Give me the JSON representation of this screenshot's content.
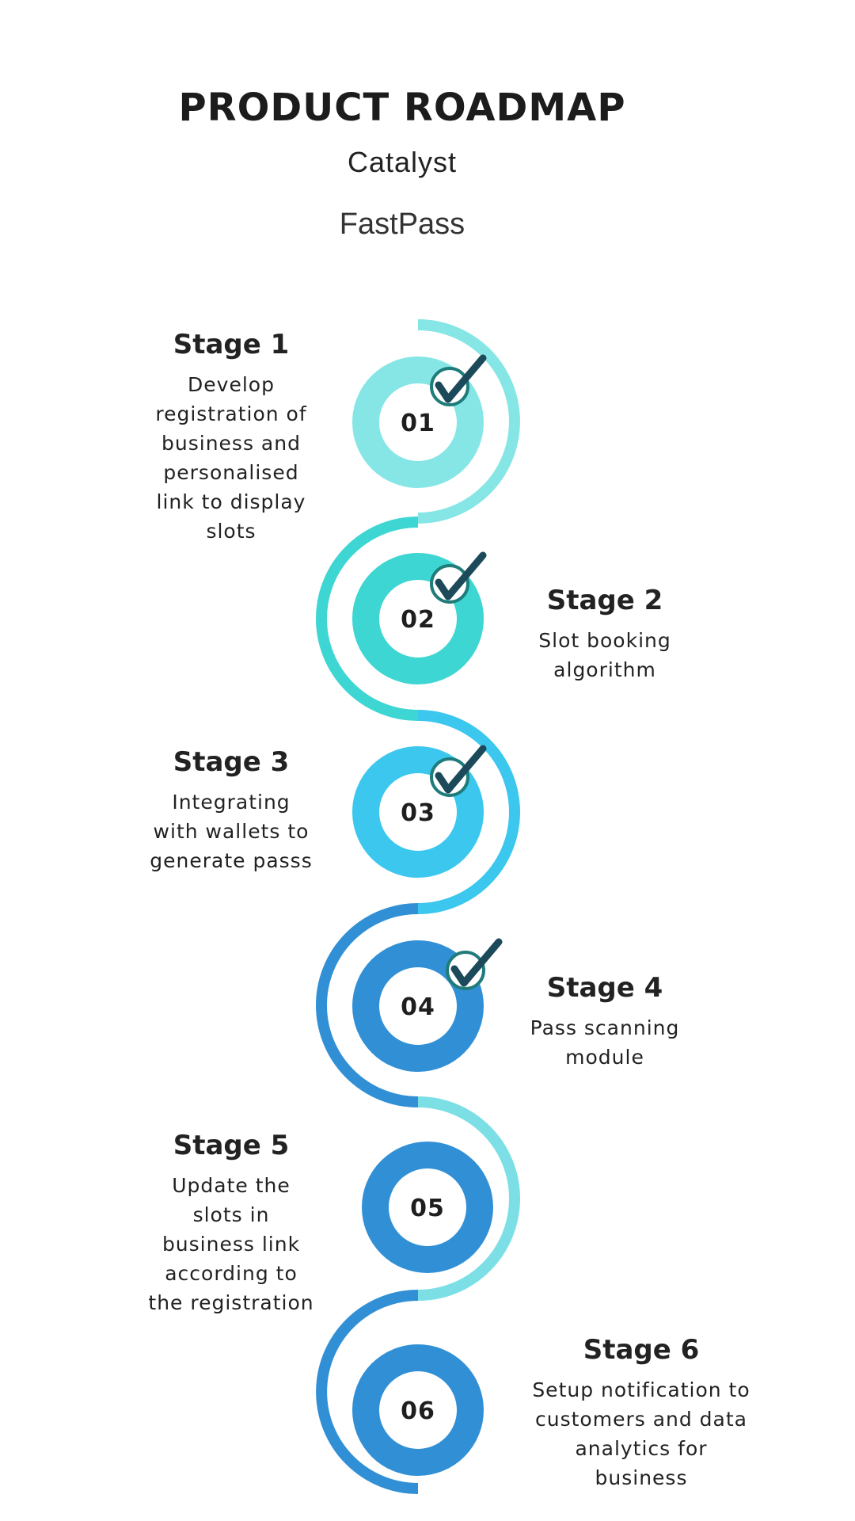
{
  "header": {
    "title": "PRODUCT ROADMAP",
    "subtitle": "Catalyst",
    "product": "FastPass"
  },
  "stages": [
    {
      "number": "01",
      "title": "Stage 1",
      "description": "Develop registration of business and personalised link to display slots",
      "completed": true,
      "color": "#86e6e6"
    },
    {
      "number": "02",
      "title": "Stage 2",
      "description": "Slot booking algorithm",
      "completed": true,
      "color": "#3ed6d3"
    },
    {
      "number": "03",
      "title": "Stage 3",
      "description": "Integrating with wallets to generate passs",
      "completed": true,
      "color": "#3cc7ee"
    },
    {
      "number": "04",
      "title": "Stage 4",
      "description": "Pass scanning module",
      "completed": true,
      "color": "#3190d5"
    },
    {
      "number": "05",
      "title": "Stage 5",
      "description": "Update the slots in business link according to the registration",
      "completed": false,
      "color": "#3190d5"
    },
    {
      "number": "06",
      "title": "Stage 6",
      "description": "Setup notification to customers and data analytics for business",
      "completed": false,
      "color": "#3190d5"
    }
  ],
  "connector_colors": [
    "#86e6e6",
    "#3ed6d3",
    "#3cc7ee",
    "#3190d5",
    "#7ddfe6",
    "#3190d5"
  ],
  "check_color": "#1c4a5a",
  "check_ring_color": "#1f7c7a"
}
